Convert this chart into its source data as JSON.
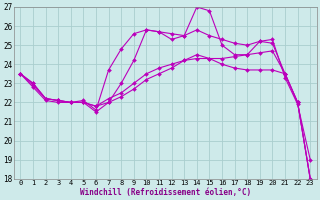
{
  "xlabel": "Windchill (Refroidissement éolien,°C)",
  "background_color": "#ceeaea",
  "grid_color": "#aacece",
  "line_color": "#bb00bb",
  "x_ticks": [
    0,
    1,
    2,
    3,
    4,
    5,
    6,
    7,
    8,
    9,
    10,
    11,
    12,
    13,
    14,
    15,
    16,
    17,
    18,
    19,
    20,
    21,
    22,
    23
  ],
  "ylim": [
    18,
    27
  ],
  "yticks": [
    18,
    19,
    20,
    21,
    22,
    23,
    24,
    25,
    26,
    27
  ],
  "lines": [
    [
      23.5,
      23.0,
      22.2,
      22.1,
      22.0,
      22.0,
      21.8,
      22.2,
      22.5,
      23.0,
      23.5,
      23.8,
      24.0,
      24.2,
      24.3,
      24.3,
      24.3,
      24.4,
      24.5,
      24.6,
      24.7,
      23.5,
      22.0,
      18.0
    ],
    [
      23.5,
      23.0,
      22.2,
      22.1,
      22.0,
      22.0,
      21.8,
      22.0,
      22.3,
      22.7,
      23.2,
      23.5,
      23.8,
      24.2,
      24.5,
      24.3,
      24.0,
      23.8,
      23.7,
      23.7,
      23.7,
      23.5,
      22.0,
      18.0
    ],
    [
      23.5,
      22.9,
      22.2,
      22.1,
      22.0,
      22.1,
      21.6,
      23.7,
      24.8,
      25.6,
      25.8,
      25.7,
      25.3,
      25.5,
      25.8,
      25.5,
      25.3,
      25.1,
      25.0,
      25.2,
      25.1,
      23.5,
      22.0,
      18.0
    ],
    [
      23.5,
      22.8,
      22.1,
      22.0,
      22.0,
      22.0,
      21.5,
      22.0,
      23.0,
      24.2,
      25.8,
      25.7,
      25.6,
      25.5,
      27.0,
      26.8,
      25.0,
      24.5,
      24.5,
      25.2,
      25.3,
      23.3,
      21.9,
      19.0
    ]
  ]
}
